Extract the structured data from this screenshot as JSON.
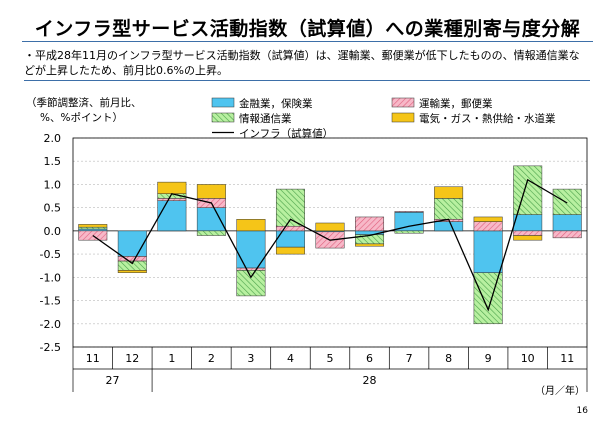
{
  "slide": {
    "title": "インフラ型サービス活動指数（試算値）への業種別寄与度分解",
    "note": "・平成28年11月のインフラ型サービス活動指数（試算値）は、運輸業、郵便業が低下したものの、情報通信業などが上昇したため、前月比0.6%の上昇。",
    "unit_label_line1": "（季節調整済、前月比、",
    "unit_label_line2": "%、%ポイント）",
    "x_axis_unit": "（月／年）",
    "page_number": "16"
  },
  "colors": {
    "finance": "#4fc4ef",
    "transport": "#f7b8c8",
    "transport_hatch": "#e0607e",
    "info": "#b8f0a0",
    "info_hatch": "#4aa04a",
    "utilities": "#f5c518",
    "line": "#000000",
    "grid": "#bbbbbb",
    "rule": "#3d6fa8"
  },
  "chart_data": {
    "type": "bar",
    "stacked": true,
    "categories": [
      "11",
      "12",
      "1",
      "2",
      "3",
      "4",
      "5",
      "6",
      "7",
      "8",
      "9",
      "10",
      "11"
    ],
    "year_groups": [
      {
        "label": "27",
        "from": 0,
        "to": 1
      },
      {
        "label": "28",
        "from": 2,
        "to": 12
      }
    ],
    "ylim": [
      -2.5,
      2.0
    ],
    "yticks": [
      "2.0",
      "1.5",
      "1.0",
      "0.5",
      "0.0",
      "-0.5",
      "-1.0",
      "-1.5",
      "-2.0",
      "-2.5"
    ],
    "ytick_values": [
      2.0,
      1.5,
      1.0,
      0.5,
      0.0,
      -0.5,
      -1.0,
      -1.5,
      -2.0,
      -2.5
    ],
    "grid": true,
    "legend_position": "top",
    "series": [
      {
        "key": "finance",
        "name": "金融業，保険業",
        "values": [
          0.04,
          -0.55,
          0.65,
          0.5,
          -0.8,
          -0.35,
          -0.02,
          -0.08,
          0.4,
          0.2,
          -0.9,
          0.35,
          0.35
        ]
      },
      {
        "key": "transport",
        "name": "運輸業，郵便業",
        "values": [
          -0.2,
          -0.1,
          0.05,
          0.2,
          -0.05,
          0.1,
          -0.35,
          0.3,
          0.02,
          0.05,
          0.2,
          -0.1,
          -0.15
        ]
      },
      {
        "key": "info",
        "name": "情報通信業",
        "values": [
          0.04,
          -0.2,
          0.1,
          -0.1,
          -0.55,
          0.8,
          0.0,
          -0.2,
          -0.05,
          0.45,
          -1.1,
          1.05,
          0.55
        ]
      },
      {
        "key": "utilities",
        "name": "電気・ガス・熱供給・水道業",
        "values": [
          0.06,
          -0.05,
          0.25,
          0.3,
          0.25,
          -0.15,
          0.17,
          -0.05,
          0.0,
          0.25,
          0.1,
          -0.1,
          0.0
        ]
      }
    ],
    "line": {
      "name": "インフラ（試算値）",
      "values": [
        -0.1,
        -0.7,
        0.8,
        0.6,
        -1.0,
        0.25,
        -0.2,
        -0.1,
        0.1,
        0.25,
        -1.7,
        1.1,
        0.6
      ]
    }
  }
}
